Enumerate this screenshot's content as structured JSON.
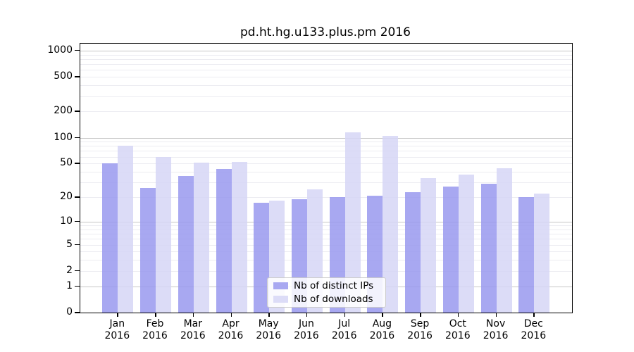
{
  "figure": {
    "title": "pd.ht.hg.u133.plus.pm 2016"
  },
  "legend": {
    "items": [
      {
        "label": "Nb of distinct IPs",
        "color": "#9999ee"
      },
      {
        "label": "Nb of downloads",
        "color": "#d6d6f6"
      }
    ]
  },
  "axes": {
    "y_ticks": [
      0,
      1,
      2,
      5,
      10,
      20,
      50,
      100,
      200,
      500,
      1000
    ],
    "x_tick_year": "2016",
    "x_tick_months": [
      "Jan",
      "Feb",
      "Mar",
      "Apr",
      "May",
      "Jun",
      "Jul",
      "Aug",
      "Sep",
      "Oct",
      "Nov",
      "Dec"
    ]
  },
  "chart_data": {
    "type": "bar",
    "title": "pd.ht.hg.u133.plus.pm 2016",
    "categories": [
      "Jan 2016",
      "Feb 2016",
      "Mar 2016",
      "Apr 2016",
      "May 2016",
      "Jun 2016",
      "Jul 2016",
      "Aug 2016",
      "Sep 2016",
      "Oct 2016",
      "Nov 2016",
      "Dec 2016"
    ],
    "series": [
      {
        "name": "Nb of distinct IPs",
        "color": "#9999ee",
        "values": [
          50,
          26,
          36,
          43,
          17,
          19,
          20,
          21,
          23,
          27,
          29,
          20
        ]
      },
      {
        "name": "Nb of downloads",
        "color": "#d6d6f6",
        "values": [
          80,
          60,
          51,
          52,
          18,
          25,
          115,
          104,
          34,
          37,
          44,
          22
        ]
      }
    ],
    "xlabel": "",
    "ylabel": "",
    "yscale": "log10(1+v)",
    "ylim": [
      0,
      1000
    ],
    "yticks": [
      0,
      1,
      2,
      5,
      10,
      20,
      50,
      100,
      200,
      500,
      1000
    ],
    "grid": "major gray at powers of 10, faint minor at 2-9 multiples",
    "legend_position": "inside lower-center"
  },
  "colors": {
    "background": "#ffffff",
    "axis": "#000000",
    "major_grid": "#c6c6c6",
    "minor_grid": "#ececf1"
  }
}
